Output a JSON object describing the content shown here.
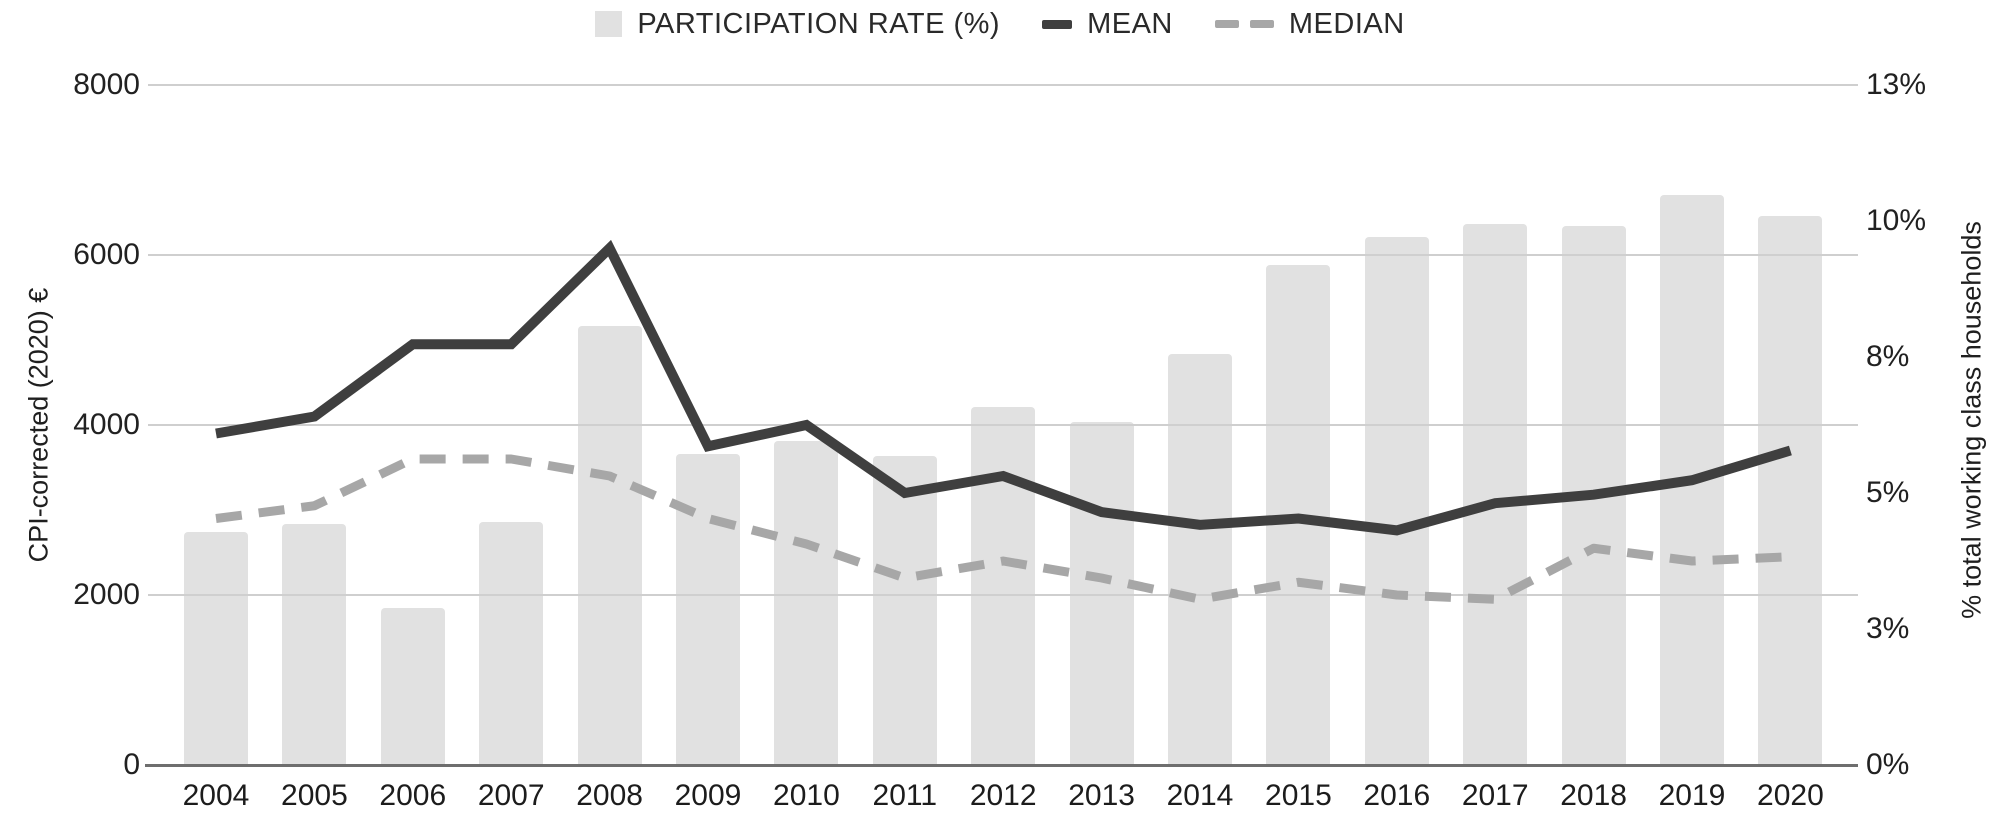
{
  "legend": {
    "items": [
      {
        "label": "PARTICIPATION RATE (%)",
        "marker": "square",
        "color": "#e1e1e1"
      },
      {
        "label": "MEAN",
        "marker": "line",
        "color": "#3f3f3f"
      },
      {
        "label": "MEDIAN",
        "marker": "dashes",
        "color": "#a7a7a7"
      }
    ]
  },
  "chart_data": {
    "type": "combo",
    "categories": [
      "2004",
      "2005",
      "2006",
      "2007",
      "2008",
      "2009",
      "2010",
      "2011",
      "2012",
      "2013",
      "2014",
      "2015",
      "2016",
      "2017",
      "2018",
      "2019",
      "2020"
    ],
    "series": [
      {
        "name": "PARTICIPATION RATE (%)",
        "chart_type": "bar",
        "axis": "right",
        "unit": "%",
        "color": "#e1e1e1",
        "values": [
          4.45,
          4.6,
          3.0,
          4.65,
          8.4,
          5.95,
          6.2,
          5.9,
          6.85,
          6.55,
          7.85,
          9.55,
          10.1,
          10.35,
          10.3,
          10.9,
          10.5
        ]
      },
      {
        "name": "MEAN",
        "chart_type": "line",
        "style": "solid",
        "axis": "left",
        "unit": "EUR",
        "color": "#3f3f3f",
        "values": [
          3900,
          4100,
          4950,
          4950,
          6080,
          3750,
          4000,
          3200,
          3400,
          2975,
          2825,
          2900,
          2760,
          3080,
          3180,
          3350,
          3700
        ]
      },
      {
        "name": "MEDIAN",
        "chart_type": "line",
        "style": "dashed",
        "axis": "left",
        "unit": "EUR",
        "color": "#a7a7a7",
        "values": [
          2900,
          3050,
          3600,
          3600,
          3400,
          2900,
          2600,
          2200,
          2400,
          2200,
          1950,
          2150,
          2000,
          1950,
          2550,
          2400,
          2450
        ]
      }
    ],
    "left_axis": {
      "title": "CPI-corrected (2020) €",
      "range": [
        0,
        8000
      ],
      "tick_labels": [
        "8000",
        "6000",
        "4000",
        "2000",
        "0"
      ]
    },
    "right_axis": {
      "title": "% total working class households",
      "range": [
        0,
        13
      ],
      "tick_labels": [
        "13%",
        "10%",
        "8%",
        "5%",
        "3%",
        "0%"
      ]
    },
    "grid": true,
    "legend_position": "top"
  },
  "colors": {
    "bar": "#e1e1e1",
    "mean_line": "#3f3f3f",
    "median_line": "#a7a7a7",
    "gridline": "#cfcfcf",
    "axis_line": "#6e6e6e",
    "text": "#212121",
    "background": "#ffffff"
  }
}
